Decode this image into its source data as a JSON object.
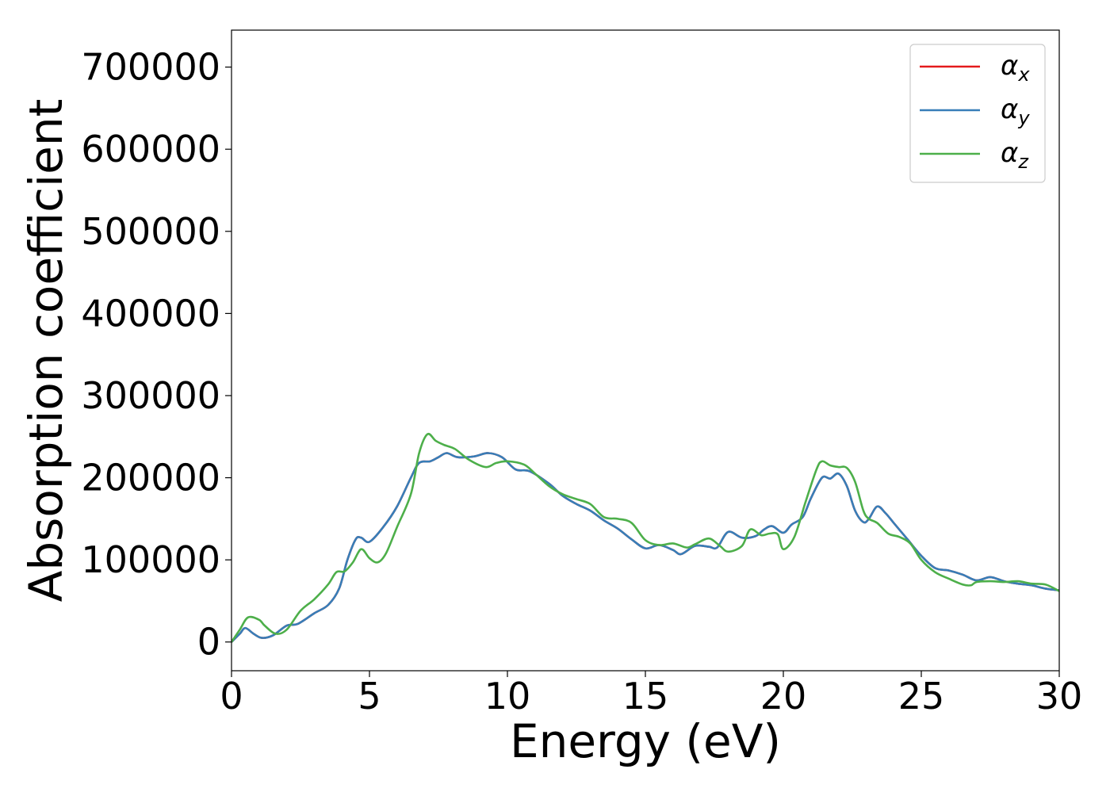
{
  "chart_data": {
    "type": "line",
    "title": "",
    "xlabel": "Energy (eV)",
    "ylabel": "Absorption coefficient",
    "xlim": [
      0,
      30
    ],
    "ylim": [
      -35000,
      745000
    ],
    "xticks": [
      0,
      5,
      10,
      15,
      20,
      25,
      30
    ],
    "xtick_labels": [
      "0",
      "5",
      "10",
      "15",
      "20",
      "25",
      "30"
    ],
    "yticks": [
      0,
      100000,
      200000,
      300000,
      400000,
      500000,
      600000,
      700000
    ],
    "ytick_labels": [
      "0",
      "100000",
      "200000",
      "300000",
      "400000",
      "500000",
      "600000",
      "700000"
    ],
    "grid": false,
    "legend_position": "top-right",
    "legend": [
      {
        "symbol": "α",
        "subscript": "x",
        "color": "#e41a1c"
      },
      {
        "symbol": "α",
        "subscript": "y",
        "color": "#377eb8"
      },
      {
        "symbol": "α",
        "subscript": "z",
        "color": "#4daf4a"
      }
    ],
    "series": [
      {
        "name": "αx",
        "color": "#e41a1c",
        "x": [
          0,
          0.3,
          0.5,
          0.8,
          1.1,
          1.5,
          2.0,
          2.4,
          3.0,
          3.5,
          3.9,
          4.2,
          4.5,
          4.7,
          5.0,
          5.5,
          6.0,
          6.5,
          6.8,
          7.2,
          7.5,
          7.8,
          8.2,
          8.8,
          9.3,
          9.8,
          10.3,
          10.8,
          11.5,
          12.0,
          12.5,
          13.0,
          13.5,
          14.0,
          14.5,
          15.0,
          15.5,
          16.0,
          16.3,
          16.8,
          17.3,
          17.6,
          18.0,
          18.5,
          19.0,
          19.3,
          19.6,
          20.0,
          20.3,
          20.7,
          21.0,
          21.4,
          21.7,
          22.0,
          22.3,
          22.6,
          22.9,
          23.1,
          23.4,
          23.7,
          24.0,
          24.5,
          25.0,
          25.5,
          26.0,
          26.5,
          27.0,
          27.5,
          28.0,
          28.5,
          29.0,
          29.5,
          30.0
        ],
        "y": [
          0,
          10000,
          17000,
          10000,
          5000,
          8000,
          20000,
          22000,
          35000,
          45000,
          65000,
          100000,
          125000,
          127000,
          122000,
          140000,
          165000,
          200000,
          218000,
          220000,
          225000,
          230000,
          225000,
          226000,
          230000,
          225000,
          210000,
          208000,
          193000,
          178000,
          168000,
          160000,
          148000,
          138000,
          125000,
          114000,
          118000,
          112000,
          107000,
          117000,
          116000,
          115000,
          134000,
          127000,
          129000,
          137000,
          141000,
          133000,
          143000,
          152000,
          175000,
          200000,
          199000,
          205000,
          190000,
          160000,
          146000,
          150000,
          165000,
          157000,
          145000,
          125000,
          105000,
          90000,
          87000,
          82000,
          75000,
          79000,
          74000,
          71000,
          69000,
          65000,
          63000
        ]
      },
      {
        "name": "αy",
        "color": "#377eb8",
        "x": [
          0,
          0.3,
          0.5,
          0.8,
          1.1,
          1.5,
          2.0,
          2.4,
          3.0,
          3.5,
          3.9,
          4.2,
          4.5,
          4.7,
          5.0,
          5.5,
          6.0,
          6.5,
          6.8,
          7.2,
          7.5,
          7.8,
          8.2,
          8.8,
          9.3,
          9.8,
          10.3,
          10.8,
          11.5,
          12.0,
          12.5,
          13.0,
          13.5,
          14.0,
          14.5,
          15.0,
          15.5,
          16.0,
          16.3,
          16.8,
          17.3,
          17.6,
          18.0,
          18.5,
          19.0,
          19.3,
          19.6,
          20.0,
          20.3,
          20.7,
          21.0,
          21.4,
          21.7,
          22.0,
          22.3,
          22.6,
          22.9,
          23.1,
          23.4,
          23.7,
          24.0,
          24.5,
          25.0,
          25.5,
          26.0,
          26.5,
          27.0,
          27.5,
          28.0,
          28.5,
          29.0,
          29.5,
          30.0
        ],
        "y": [
          0,
          10000,
          17000,
          10000,
          5000,
          8000,
          20000,
          22000,
          35000,
          45000,
          65000,
          100000,
          125000,
          127000,
          122000,
          140000,
          165000,
          200000,
          218000,
          220000,
          225000,
          230000,
          225000,
          226000,
          230000,
          225000,
          210000,
          208000,
          193000,
          178000,
          168000,
          160000,
          148000,
          138000,
          125000,
          114000,
          118000,
          112000,
          107000,
          117000,
          116000,
          115000,
          134000,
          127000,
          129000,
          137000,
          141000,
          133000,
          143000,
          152000,
          175000,
          200000,
          199000,
          205000,
          190000,
          160000,
          146000,
          150000,
          165000,
          157000,
          145000,
          125000,
          105000,
          90000,
          87000,
          82000,
          75000,
          79000,
          74000,
          71000,
          69000,
          65000,
          63000
        ]
      },
      {
        "name": "αz",
        "color": "#4daf4a",
        "x": [
          0,
          0.3,
          0.6,
          1.0,
          1.2,
          1.6,
          2.0,
          2.5,
          3.0,
          3.5,
          3.8,
          4.1,
          4.4,
          4.7,
          5.0,
          5.3,
          5.6,
          6.0,
          6.5,
          6.8,
          7.1,
          7.4,
          7.7,
          8.1,
          8.6,
          9.2,
          9.6,
          10.0,
          10.6,
          11.0,
          11.5,
          12.0,
          12.5,
          13.0,
          13.5,
          14.0,
          14.5,
          15.0,
          15.5,
          16.0,
          16.5,
          16.8,
          17.3,
          17.7,
          18.0,
          18.5,
          18.8,
          19.2,
          19.5,
          19.8,
          20.0,
          20.4,
          20.8,
          21.2,
          21.4,
          21.7,
          22.0,
          22.3,
          22.6,
          22.9,
          23.1,
          23.4,
          23.8,
          24.2,
          24.6,
          25.0,
          25.5,
          26.0,
          26.5,
          26.8,
          27.0,
          27.5,
          28.0,
          28.5,
          29.0,
          29.5,
          30.0
        ],
        "y": [
          0,
          15000,
          30000,
          27000,
          20000,
          10000,
          15000,
          38000,
          52000,
          70000,
          85000,
          86000,
          97000,
          113000,
          102000,
          97000,
          108000,
          140000,
          180000,
          230000,
          253000,
          245000,
          240000,
          235000,
          222000,
          213000,
          218000,
          220000,
          216000,
          205000,
          190000,
          180000,
          174000,
          168000,
          152000,
          150000,
          145000,
          124000,
          118000,
          120000,
          115000,
          119000,
          126000,
          117000,
          110000,
          117000,
          137000,
          130000,
          132000,
          131000,
          113000,
          128000,
          170000,
          210000,
          220000,
          215000,
          213000,
          212000,
          195000,
          160000,
          150000,
          145000,
          132000,
          128000,
          120000,
          100000,
          85000,
          77000,
          70000,
          69000,
          73000,
          74000,
          73000,
          74000,
          71000,
          70000,
          62000
        ]
      }
    ]
  }
}
